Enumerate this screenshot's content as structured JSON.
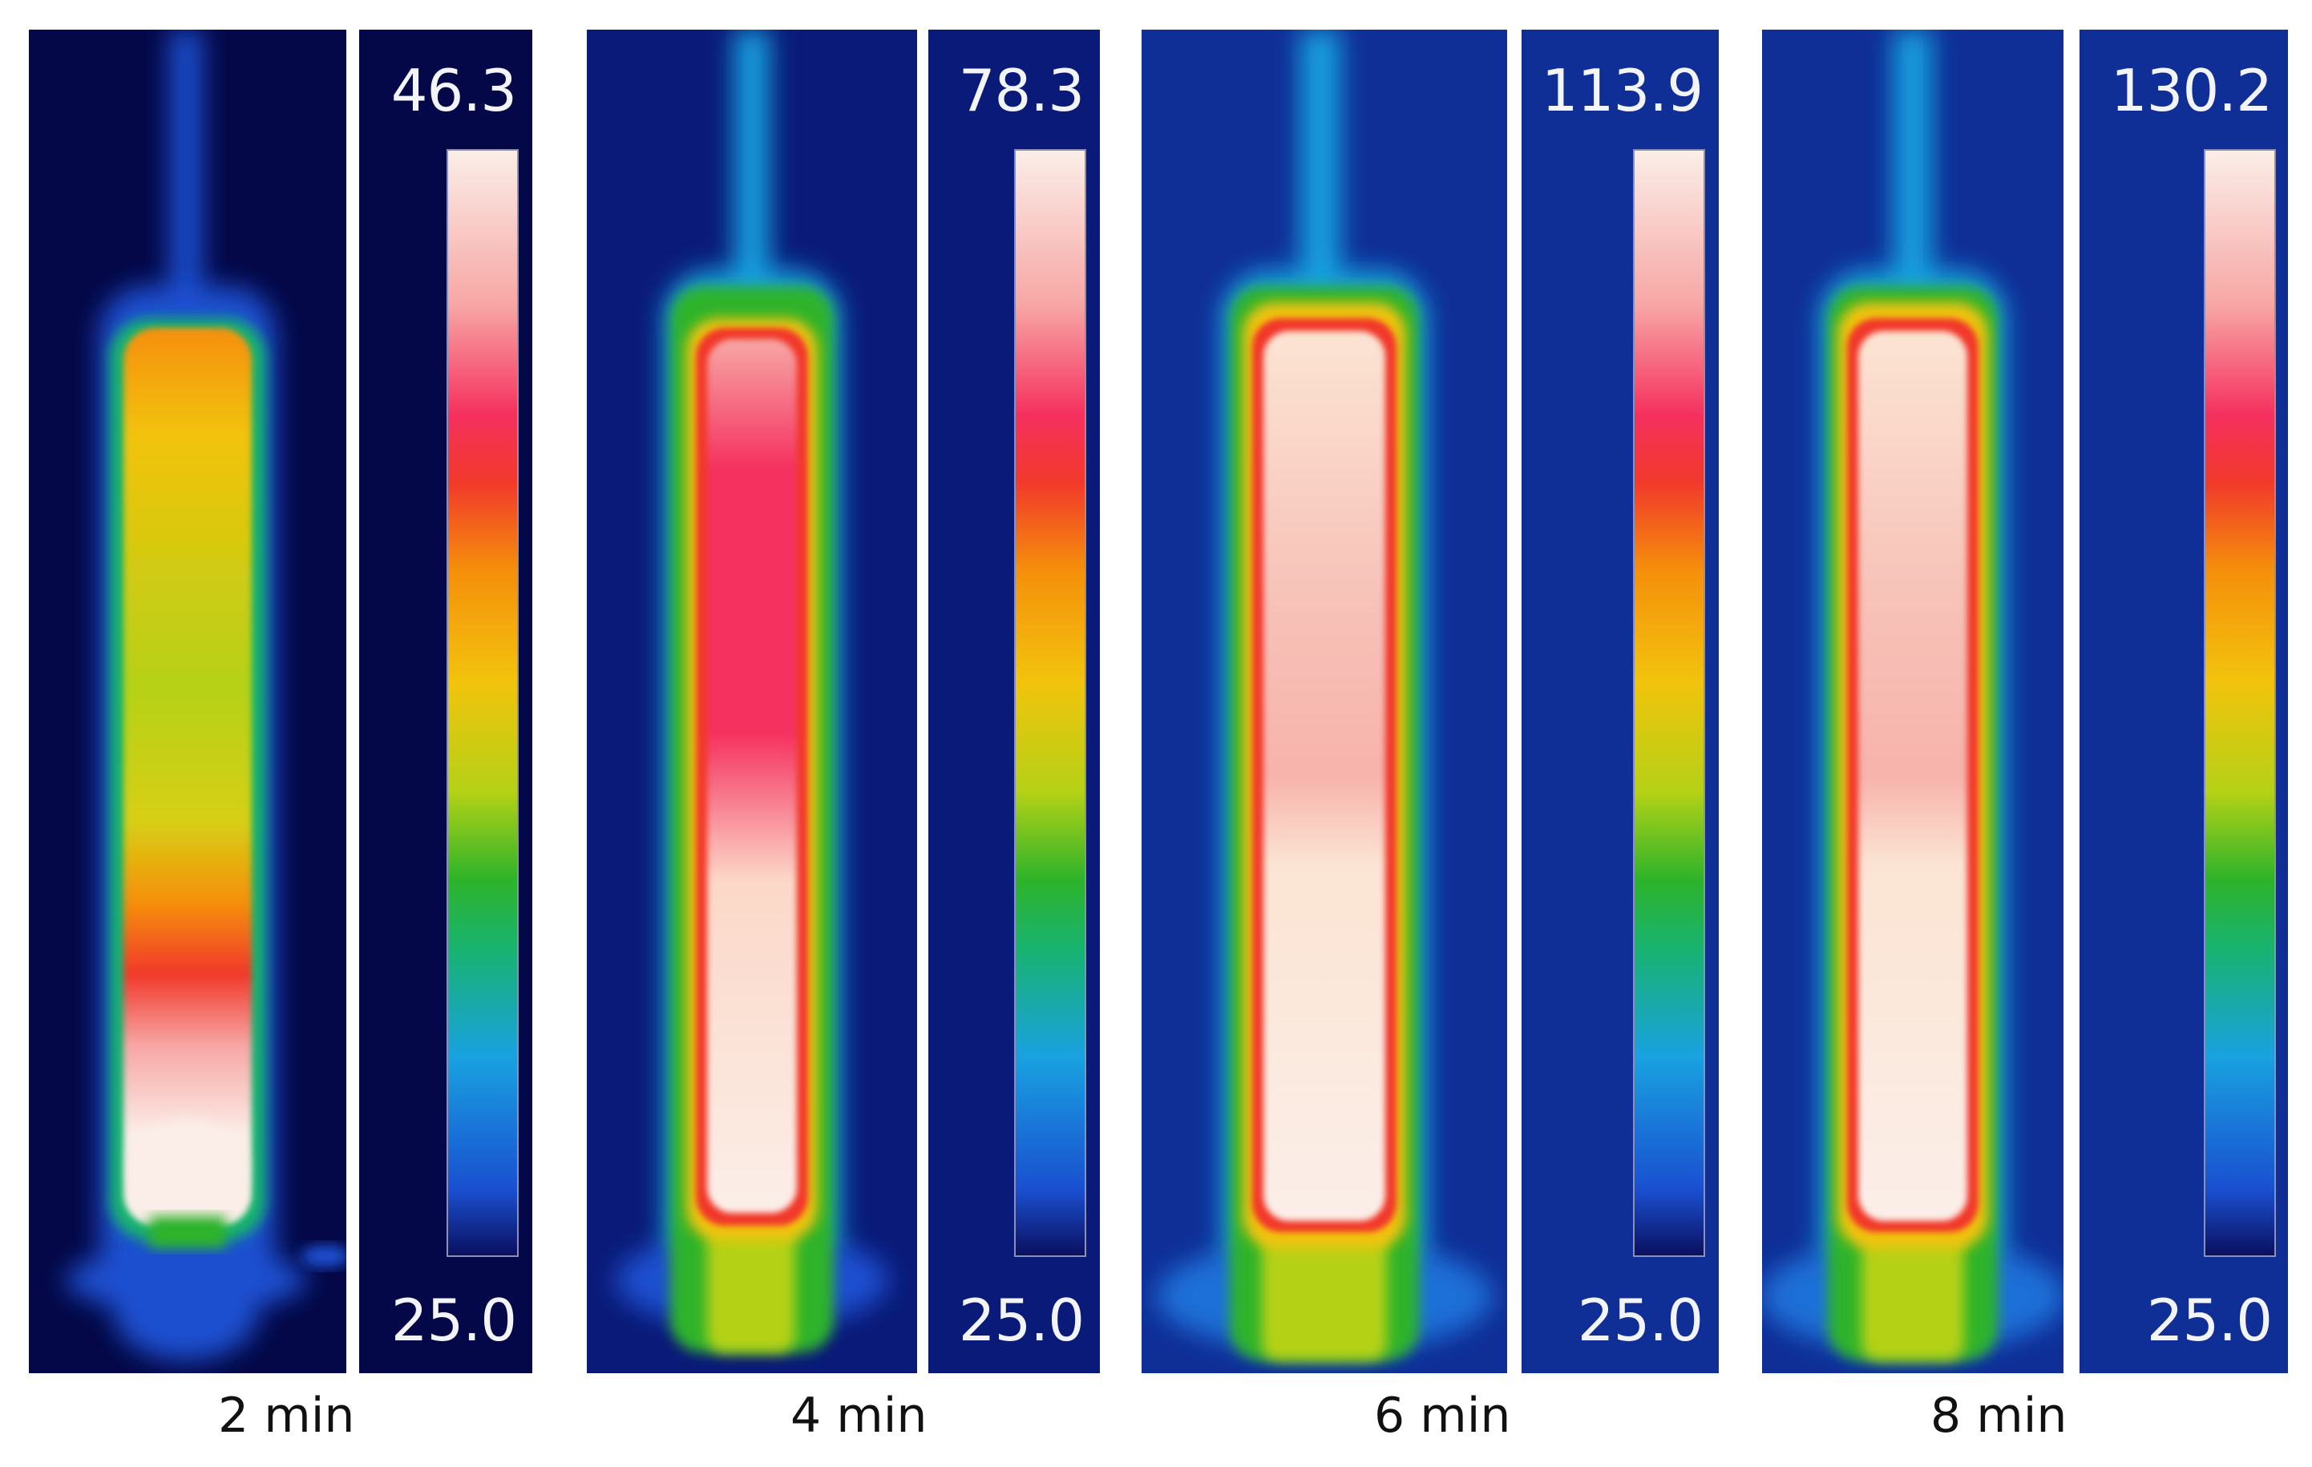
{
  "colormap_stops": [
    "#0b0f5e",
    "#1a4fd0",
    "#19a1e0",
    "#19b36e",
    "#2db32a",
    "#b5d116",
    "#f2c30d",
    "#f58f0b",
    "#f1392b",
    "#f5305e",
    "#f7a7a5",
    "#fbe4d3",
    "#fbeee8"
  ],
  "panels": [
    {
      "caption": "2 min",
      "scale_max": "46.3",
      "scale_min": "25.0",
      "background": "#040848"
    },
    {
      "caption": "4 min",
      "scale_max": "78.3",
      "scale_min": "25.0",
      "background": "#0a1a78"
    },
    {
      "caption": "6 min",
      "scale_max": "113.9",
      "scale_min": "25.0",
      "background": "#0f2e96"
    },
    {
      "caption": "8 min",
      "scale_max": "130.2",
      "scale_min": "25.0",
      "background": "#0f2e96"
    }
  ]
}
